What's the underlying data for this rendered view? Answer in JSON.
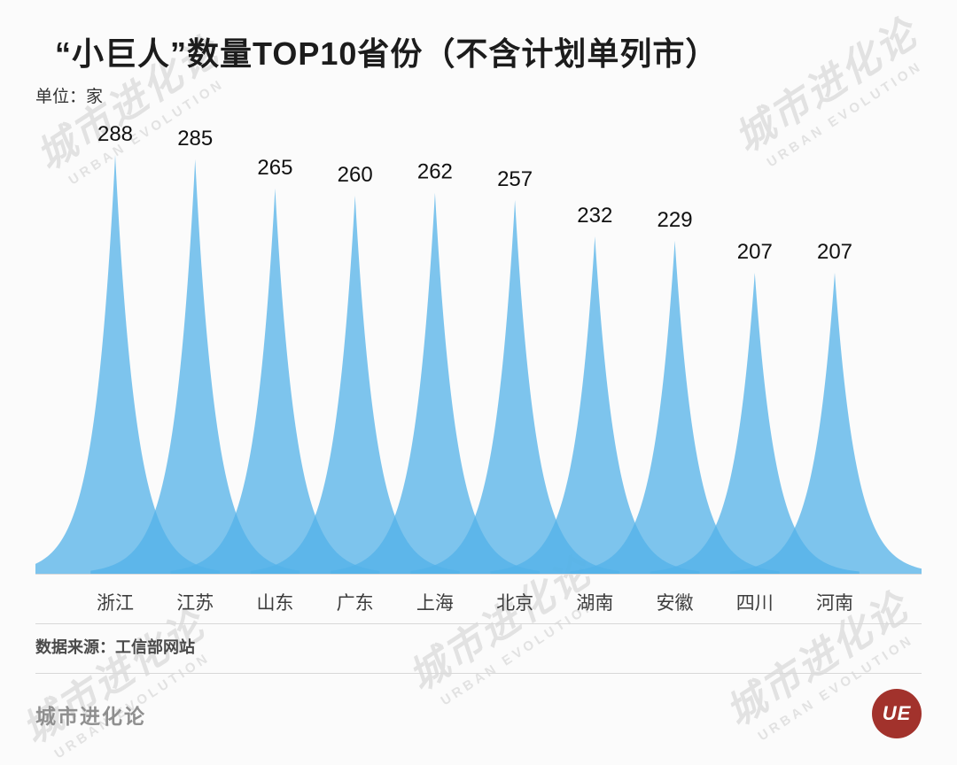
{
  "header": {
    "title": "“小巨人”数量TOP10省份（不含计划单列市）",
    "unit_label": "单位：家"
  },
  "chart_data": {
    "type": "area",
    "title": "“小巨人”数量TOP10省份（不含计划单列市）",
    "unit": "家",
    "categories": [
      "浙江",
      "江苏",
      "山东",
      "广东",
      "上海",
      "北京",
      "湖南",
      "安徽",
      "四川",
      "河南"
    ],
    "values": [
      288,
      285,
      265,
      260,
      262,
      257,
      232,
      229,
      207,
      207
    ],
    "ylim": [
      0,
      300
    ],
    "grid": false,
    "legend": "none",
    "peak_color": "#53B2E8"
  },
  "footer": {
    "source_label": "数据来源：工信部网站",
    "brand": "城市进化论",
    "logo_text": "UE"
  },
  "watermark": {
    "line1": "城市进化论",
    "line2": "URBAN EVOLUTION"
  }
}
